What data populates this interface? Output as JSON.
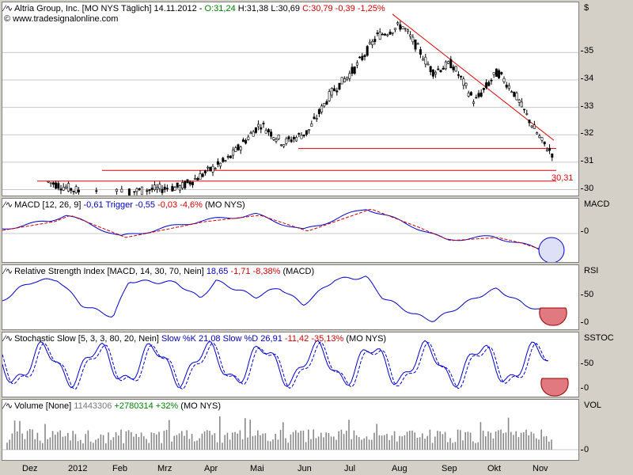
{
  "main": {
    "title_name": "Altria Group, Inc. [MO NYS  Täglich] 14.11.2012 - ",
    "title_ohlc": [
      {
        "text": "O:31,24",
        "color": "green"
      },
      {
        "text": "H:31,38",
        "color": "black"
      },
      {
        "text": "L:30,69",
        "color": "black"
      },
      {
        "text": "C:30,79 -0,39 -1,25%",
        "color": "red"
      }
    ],
    "website": "www.tradesignalonline.com",
    "currency": "$",
    "last_label": "30,31"
  },
  "macd": {
    "title_prefix": "MACD [12, 26, 9]",
    "value": "-0,61",
    "trigger": "Trigger -0,55",
    "change": "-0,03 -4,6%",
    "suffix": "(MO NYS)",
    "scale_label": "MACD"
  },
  "rsi": {
    "title_prefix": "Relative Strength Index [MACD, 14, 30, 70, Nein]",
    "value": "18,65",
    "change": "-1,71 -8,38%",
    "suffix": "(MACD)",
    "scale_label": "RSI"
  },
  "stoch": {
    "title_prefix": "Stochastic Slow [5, 3, 3, 80, 20, Nein]",
    "k": "Slow %K 21,08",
    "d": "Slow %D 26,91",
    "change": "-11,42 -35,13%",
    "suffix": "(MO NYS)",
    "scale_label": "SSTOC"
  },
  "volume": {
    "title_prefix": "Volume [None]",
    "value": "11443306",
    "change": "+2780314 +32%",
    "suffix": "(MO NYS)",
    "scale_label": "VOL"
  },
  "colors": {
    "up": "#ffffff",
    "down": "#000000",
    "line_blue": "#0000cc",
    "line_red": "#cc0000",
    "resistance": "#e00000",
    "oversold_fill": "#e07a80",
    "macd_fill": "#dde0f6"
  },
  "chart_data": [
    {
      "type": "candlestick",
      "title": "Altria Group, Inc. [MO NYS  Täglich]",
      "ylabel": "$",
      "ylim": [
        29.9,
        36.6
      ],
      "y_ticks": [
        30,
        31,
        32,
        33,
        34,
        35
      ],
      "x_ticks": [
        "Dez",
        "2012",
        "Feb",
        "Mrz",
        "Apr",
        "Mai",
        "Jun",
        "Jul",
        "Aug",
        "Sep",
        "Okt",
        "Nov"
      ],
      "close_path": [
        {
          "x": "Dez",
          "y": 30.3
        },
        {
          "x": "2012",
          "y": 29.8
        },
        {
          "x": "Mrz",
          "y": 30.1
        },
        {
          "x": "Apr",
          "y": 31.1
        },
        {
          "x": "Mai",
          "y": 32.4
        },
        {
          "x": "Mai",
          "y": 31.7
        },
        {
          "x": "Jun",
          "y": 32.1
        },
        {
          "x": "Jun",
          "y": 33.5
        },
        {
          "x": "Jul",
          "y": 34.4
        },
        {
          "x": "Jul",
          "y": 35.6
        },
        {
          "x": "Aug",
          "y": 36.0
        },
        {
          "x": "Aug",
          "y": 35.2
        },
        {
          "x": "Aug",
          "y": 34.3
        },
        {
          "x": "Sep",
          "y": 34.6
        },
        {
          "x": "Sep",
          "y": 33.2
        },
        {
          "x": "Okt",
          "y": 34.3
        },
        {
          "x": "Okt",
          "y": 33.6
        },
        {
          "x": "Okt",
          "y": 32.6
        },
        {
          "x": "Nov",
          "y": 31.7
        },
        {
          "x": "Nov",
          "y": 30.79
        }
      ],
      "horizontal_lines": [
        30.31,
        30.7,
        31.5
      ],
      "trendline": [
        {
          "x": "Aug",
          "y": 36.4
        },
        {
          "x": "Nov",
          "y": 31.8
        }
      ],
      "annotations": [
        "30,31"
      ]
    },
    {
      "type": "line",
      "title": "MACD [12, 26, 9]",
      "y_ticks": [
        0
      ],
      "series": [
        {
          "name": "MACD",
          "last": -0.61
        },
        {
          "name": "Trigger",
          "last": -0.55
        }
      ]
    },
    {
      "type": "line",
      "title": "Relative Strength Index [MACD, 14, 30, 70, Nein]",
      "y_ticks": [
        0,
        50
      ],
      "series": [
        {
          "name": "RSI",
          "last": 18.65
        }
      ]
    },
    {
      "type": "line",
      "title": "Stochastic Slow [5, 3, 3, 80, 20, Nein]",
      "y_ticks": [
        0,
        50
      ],
      "series": [
        {
          "name": "Slow %K",
          "last": 21.08
        },
        {
          "name": "Slow %D",
          "last": 26.91
        }
      ]
    },
    {
      "type": "bar",
      "title": "Volume [None]",
      "y_ticks": [
        0
      ],
      "last": 11443306
    }
  ]
}
